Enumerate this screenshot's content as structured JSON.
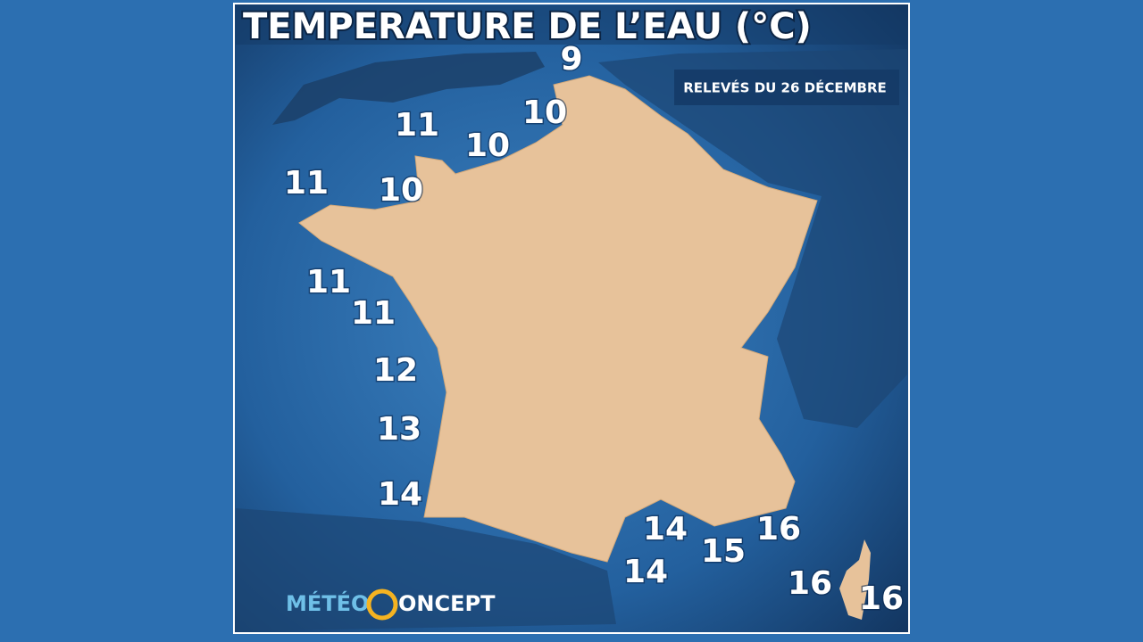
{
  "header": {
    "title": "TEMPERATURE DE L’EAU (°C)",
    "subtitle": "RELEVÉS DU 26 DÉCEMBRE"
  },
  "readings": [
    9,
    10,
    11,
    10,
    11,
    10,
    11,
    11,
    12,
    13,
    14,
    14,
    15,
    16,
    14,
    16,
    16
  ],
  "logo": {
    "left": "MÉTÉO",
    "right": "ONCEPT"
  }
}
